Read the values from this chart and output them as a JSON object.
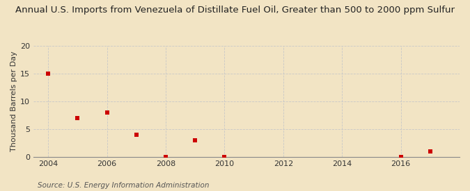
{
  "title": "Annual U.S. Imports from Venezuela of Distillate Fuel Oil, Greater than 500 to 2000 ppm Sulfur",
  "ylabel": "Thousand Barrels per Day",
  "source": "Source: U.S. Energy Information Administration",
  "background_color": "#f2e4c4",
  "scatter_color": "#cc0000",
  "x_data": [
    2004,
    2005,
    2006,
    2007,
    2008,
    2009,
    2010,
    2016,
    2017
  ],
  "y_data": [
    15.0,
    7.0,
    8.0,
    4.0,
    0.02,
    3.0,
    0.02,
    0.02,
    1.0
  ],
  "xlim": [
    2003.5,
    2018.0
  ],
  "ylim": [
    0,
    20
  ],
  "yticks": [
    0,
    5,
    10,
    15,
    20
  ],
  "xticks": [
    2004,
    2006,
    2008,
    2010,
    2012,
    2014,
    2016
  ],
  "title_fontsize": 9.5,
  "label_fontsize": 8,
  "source_fontsize": 7.5,
  "marker_size": 18,
  "grid_color": "#c8c8c8",
  "spine_color": "#888888"
}
